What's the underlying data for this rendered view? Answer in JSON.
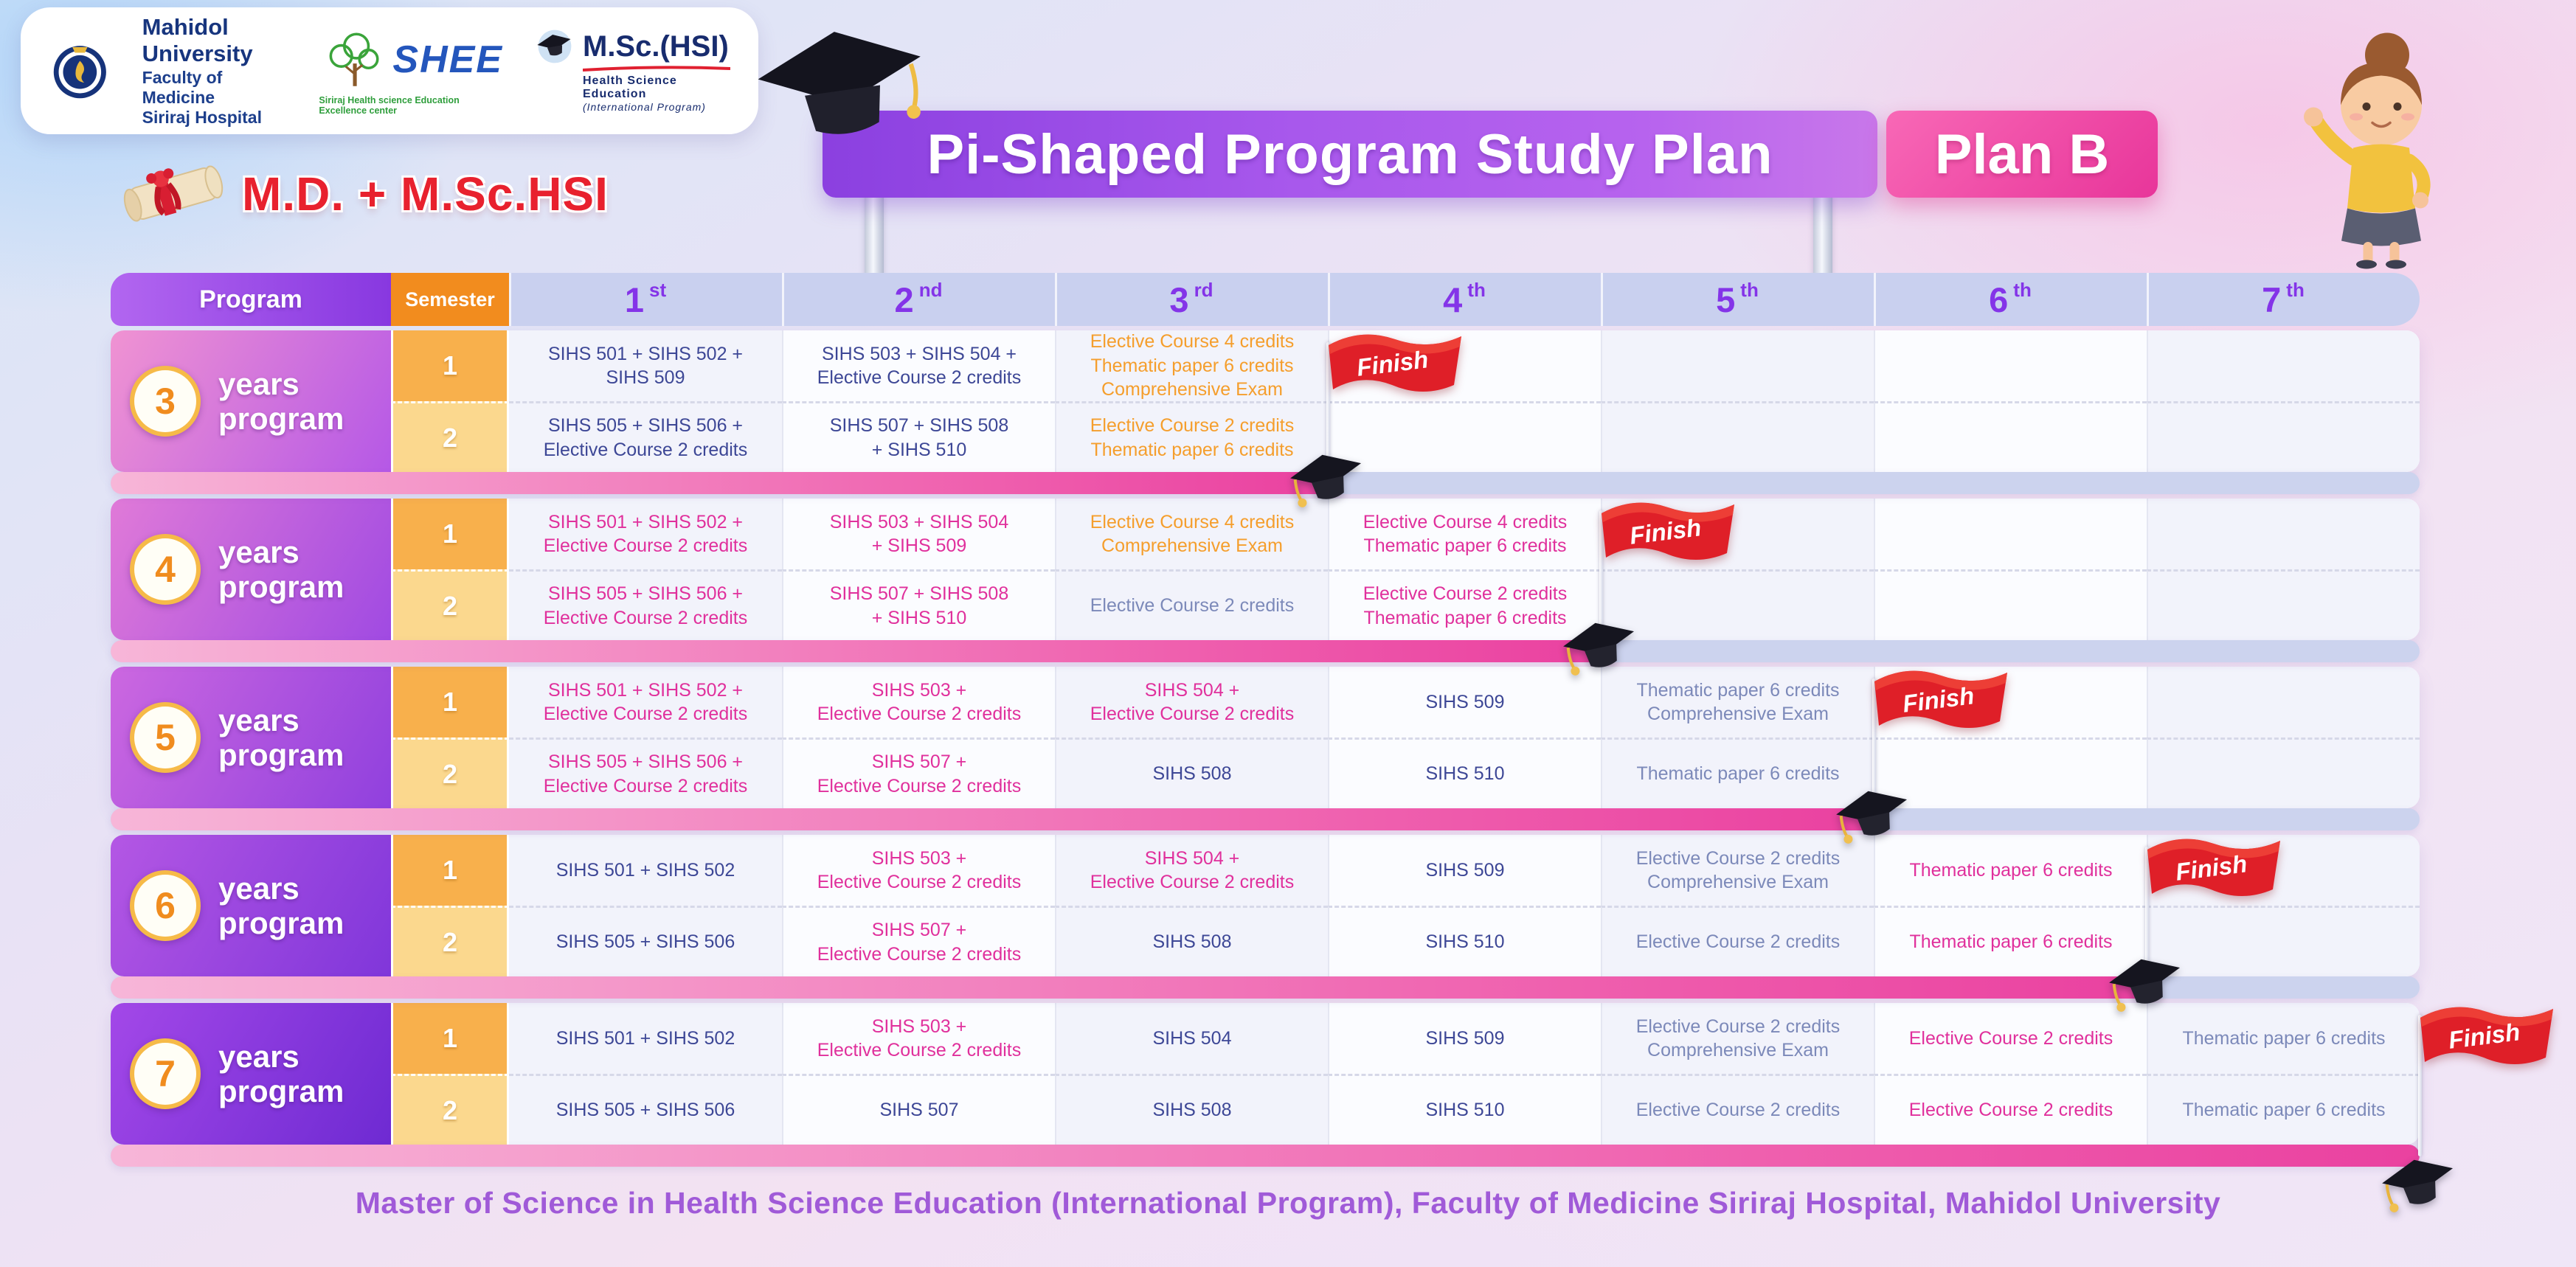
{
  "header": {
    "degree_title": "M.D. + M.Sc.HSI",
    "banner": {
      "title": "Pi-Shaped Program Study Plan",
      "plan": "Plan B"
    },
    "logos": {
      "mahidol": {
        "name": "Mahidol University",
        "line2": "Faculty of Medicine",
        "line3": "Siriraj Hospital"
      },
      "shee": {
        "name": "SHEE",
        "tagline": "Siriraj Health science Education Excellence center"
      },
      "mschsi": {
        "name": "M.Sc.(HSI)",
        "line2": "Health  Science  Education",
        "line3": "(International  Program)"
      }
    }
  },
  "icons": {
    "banner_cap": "graduation-cap",
    "program_end_cap": "graduation-cap",
    "finish_flag": "red-finish-flag",
    "degree_scroll": "diploma-scroll",
    "mahidol_emblem": "university-emblem",
    "shee_tree": "green-tree",
    "mascot": "girl-character"
  },
  "table": {
    "program_header": "Program",
    "semester_header": "Semester",
    "finish_label": "Finish",
    "columns": [
      {
        "num": "1",
        "suffix": "st"
      },
      {
        "num": "2",
        "suffix": "nd"
      },
      {
        "num": "3",
        "suffix": "rd"
      },
      {
        "num": "4",
        "suffix": "th"
      },
      {
        "num": "5",
        "suffix": "th"
      },
      {
        "num": "6",
        "suffix": "th"
      },
      {
        "num": "7",
        "suffix": "th"
      }
    ],
    "programs": [
      {
        "years": "3",
        "label": [
          "years",
          "program"
        ],
        "finish_column": 3,
        "gradient": [
          "#f093d2",
          "#b558e6"
        ],
        "semesters": [
          {
            "num": "1",
            "cells": [
              {
                "col": 1,
                "color": "navy",
                "lines": [
                  "SIHS 501  + SIHS 502 +",
                  "SIHS 509"
                ]
              },
              {
                "col": 2,
                "color": "navy",
                "lines": [
                  "SIHS 503 + SIHS 504 +",
                  "Elective Course 2 credits"
                ]
              },
              {
                "col": 3,
                "color": "orange",
                "lines": [
                  "Elective Course 4 credits",
                  "Thematic paper 6 credits",
                  "Comprehensive Exam"
                ]
              }
            ]
          },
          {
            "num": "2",
            "cells": [
              {
                "col": 1,
                "color": "navy",
                "lines": [
                  "SIHS 505 + SIHS 506 +",
                  "Elective Course 2 credits"
                ]
              },
              {
                "col": 2,
                "color": "navy",
                "lines": [
                  "SIHS 507 + SIHS 508",
                  "+ SIHS 510"
                ]
              },
              {
                "col": 3,
                "color": "orange",
                "lines": [
                  "Elective Course  2 credits",
                  "Thematic paper 6 credits"
                ]
              }
            ]
          }
        ]
      },
      {
        "years": "4",
        "label": [
          "years",
          "program"
        ],
        "finish_column": 4,
        "gradient": [
          "#e07ad8",
          "#a04ae2"
        ],
        "semesters": [
          {
            "num": "1",
            "cells": [
              {
                "col": 1,
                "color": "magenta",
                "lines": [
                  "SIHS 501 + SIHS 502 +",
                  "Elective Course 2 credits"
                ]
              },
              {
                "col": 2,
                "color": "magenta",
                "lines": [
                  "SIHS 503 + SIHS 504",
                  "+ SIHS 509"
                ]
              },
              {
                "col": 3,
                "color": "orange",
                "lines": [
                  "Elective Course  4 credits",
                  "Comprehensive Exam"
                ]
              },
              {
                "col": 4,
                "color": "magenta",
                "lines": [
                  "Elective Course  4 credits",
                  "Thematic paper 6 credits"
                ]
              }
            ]
          },
          {
            "num": "2",
            "cells": [
              {
                "col": 1,
                "color": "magenta",
                "lines": [
                  "SIHS 505 + SIHS 506 +",
                  "Elective Course 2 credits"
                ]
              },
              {
                "col": 2,
                "color": "magenta",
                "lines": [
                  "SIHS 507 + SIHS 508",
                  "+ SIHS 510"
                ]
              },
              {
                "col": 3,
                "color": "slate",
                "lines": [
                  "Elective Course  2 credits"
                ]
              },
              {
                "col": 4,
                "color": "magenta",
                "lines": [
                  "Elective Course  2 credits",
                  "Thematic paper 6 credits"
                ]
              }
            ]
          }
        ]
      },
      {
        "years": "5",
        "label": [
          "years",
          "program"
        ],
        "finish_column": 5,
        "gradient": [
          "#cc68e0",
          "#9040de"
        ],
        "semesters": [
          {
            "num": "1",
            "cells": [
              {
                "col": 1,
                "color": "magenta",
                "lines": [
                  "SIHS 501 + SIHS 502 +",
                  "Elective Course 2 credits"
                ]
              },
              {
                "col": 2,
                "color": "magenta",
                "lines": [
                  "SIHS 503 +",
                  "Elective Course 2 credits"
                ]
              },
              {
                "col": 3,
                "color": "magenta",
                "lines": [
                  "SIHS 504 +",
                  "Elective Course 2 credits"
                ]
              },
              {
                "col": 4,
                "color": "navy",
                "lines": [
                  "SIHS 509"
                ]
              },
              {
                "col": 5,
                "color": "slate",
                "lines": [
                  "Thematic paper 6 credits",
                  "Comprehensive Exam"
                ]
              }
            ]
          },
          {
            "num": "2",
            "cells": [
              {
                "col": 1,
                "color": "magenta",
                "lines": [
                  "SIHS 505 + SIHS 506 +",
                  "Elective Course 2 credits"
                ]
              },
              {
                "col": 2,
                "color": "magenta",
                "lines": [
                  "SIHS 507 +",
                  "Elective Course 2 credits"
                ]
              },
              {
                "col": 3,
                "color": "navy",
                "lines": [
                  "SIHS 508"
                ]
              },
              {
                "col": 4,
                "color": "navy",
                "lines": [
                  "SIHS 510"
                ]
              },
              {
                "col": 5,
                "color": "slate",
                "lines": [
                  "Thematic paper 6 credits"
                ]
              }
            ]
          }
        ]
      },
      {
        "years": "6",
        "label": [
          "years",
          "program"
        ],
        "finish_column": 6,
        "gradient": [
          "#b457e4",
          "#8036da"
        ],
        "semesters": [
          {
            "num": "1",
            "cells": [
              {
                "col": 1,
                "color": "navy",
                "lines": [
                  "SIHS 501 + SIHS 502"
                ]
              },
              {
                "col": 2,
                "color": "magenta",
                "lines": [
                  "SIHS 503 +",
                  "Elective Course 2 credits"
                ]
              },
              {
                "col": 3,
                "color": "magenta",
                "lines": [
                  "SIHS 504 +",
                  "Elective Course 2 credits"
                ]
              },
              {
                "col": 4,
                "color": "navy",
                "lines": [
                  "SIHS 509"
                ]
              },
              {
                "col": 5,
                "color": "slate",
                "lines": [
                  "Elective Course  2 credits",
                  "Comprehensive Exam"
                ]
              },
              {
                "col": 6,
                "color": "magenta",
                "lines": [
                  "Thematic paper 6 credits"
                ]
              }
            ]
          },
          {
            "num": "2",
            "cells": [
              {
                "col": 1,
                "color": "navy",
                "lines": [
                  "SIHS 505 + SIHS 506"
                ]
              },
              {
                "col": 2,
                "color": "magenta",
                "lines": [
                  "SIHS 507 +",
                  "Elective Course 2 credits"
                ]
              },
              {
                "col": 3,
                "color": "navy",
                "lines": [
                  "SIHS 508"
                ]
              },
              {
                "col": 4,
                "color": "navy",
                "lines": [
                  "SIHS 510"
                ]
              },
              {
                "col": 5,
                "color": "slate",
                "lines": [
                  "Elective Course  2 credits"
                ]
              },
              {
                "col": 6,
                "color": "magenta",
                "lines": [
                  "Thematic paper 6 credits"
                ]
              }
            ]
          }
        ]
      },
      {
        "years": "7",
        "label": [
          "years",
          "program"
        ],
        "finish_column": 7,
        "gradient": [
          "#a348e8",
          "#6e2ad2"
        ],
        "semesters": [
          {
            "num": "1",
            "cells": [
              {
                "col": 1,
                "color": "navy",
                "lines": [
                  "SIHS 501 + SIHS 502"
                ]
              },
              {
                "col": 2,
                "color": "magenta",
                "lines": [
                  "SIHS 503 +",
                  "Elective Course 2 credits"
                ]
              },
              {
                "col": 3,
                "color": "navy",
                "lines": [
                  "SIHS 504"
                ]
              },
              {
                "col": 4,
                "color": "navy",
                "lines": [
                  "SIHS 509"
                ]
              },
              {
                "col": 5,
                "color": "slate",
                "lines": [
                  "Elective Course  2 credits",
                  "Comprehensive Exam"
                ]
              },
              {
                "col": 6,
                "color": "magenta",
                "lines": [
                  "Elective Course  2 credits"
                ]
              },
              {
                "col": 7,
                "color": "slate",
                "lines": [
                  "Thematic paper 6 credits"
                ]
              }
            ]
          },
          {
            "num": "2",
            "cells": [
              {
                "col": 1,
                "color": "navy",
                "lines": [
                  "SIHS 505 + SIHS 506"
                ]
              },
              {
                "col": 2,
                "color": "navy",
                "lines": [
                  "SIHS 507"
                ]
              },
              {
                "col": 3,
                "color": "navy",
                "lines": [
                  "SIHS 508"
                ]
              },
              {
                "col": 4,
                "color": "navy",
                "lines": [
                  "SIHS 510"
                ]
              },
              {
                "col": 5,
                "color": "slate",
                "lines": [
                  "Elective Course  2 credits"
                ]
              },
              {
                "col": 6,
                "color": "magenta",
                "lines": [
                  "Elective Course  2 credits"
                ]
              },
              {
                "col": 7,
                "color": "slate",
                "lines": [
                  "Thematic paper 6 credits"
                ]
              }
            ]
          }
        ]
      }
    ]
  },
  "footer": {
    "text": "Master of Science in Health Science Education (International Program), Faculty of Medicine Siriraj Hospital, Mahidol University"
  },
  "palette": {
    "accent_purple": "#8434e8",
    "header_strip": "#c9d0ef",
    "semester_orange": "#f28c1e",
    "sem1_cell": "#f8b04c",
    "sem2_cell": "#fbd88e",
    "course_navy": "#3d4796",
    "course_magenta": "#e0309c",
    "course_orange": "#f59e2c",
    "course_slate": "#7c89b9",
    "timeline_pink": "#ea41a0",
    "timeline_base": "#ccd3ee",
    "finish_red": "#df1f28",
    "degree_red": "#e8212e",
    "footer_purple": "#a05ad8"
  }
}
